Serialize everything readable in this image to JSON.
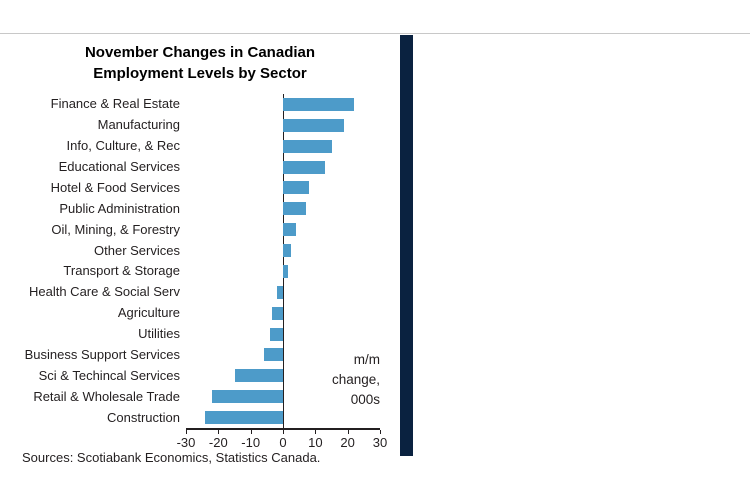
{
  "chart_data": {
    "type": "bar",
    "orientation": "horizontal",
    "title_line1": "November Changes in Canadian",
    "title_line2": "Employment Levels by Sector",
    "categories": [
      "Finance & Real Estate",
      "Manufacturing",
      "Info, Culture, & Rec",
      "Educational Services",
      "Hotel & Food Services",
      "Public Administration",
      "Oil, Mining, & Forestry",
      "Other Services",
      "Transport & Storage",
      "Health Care & Social Serv",
      "Agriculture",
      "Utilities",
      "Business Support Services",
      "Sci & Techincal Services",
      "Retail & Wholesale Trade",
      "Construction"
    ],
    "values": [
      22,
      19,
      15,
      13,
      8,
      7,
      4,
      2.5,
      1.5,
      -2,
      -3.5,
      -4,
      -6,
      -15,
      -22,
      -24
    ],
    "xlim": [
      -30,
      30
    ],
    "xticks": [
      -30,
      -20,
      -10,
      0,
      10,
      20,
      30
    ],
    "annotation": "m/m\nchange,\n000s",
    "bar_color": "#4d9bc9",
    "axis_color": "#231f20",
    "grid": false,
    "legend": "none"
  },
  "footer": {
    "source": "Sources: Scotiabank Economics, Statistics Canada."
  },
  "decor": {
    "divider_color": "#c8c8c8",
    "sidebar_color": "#0a2240"
  }
}
